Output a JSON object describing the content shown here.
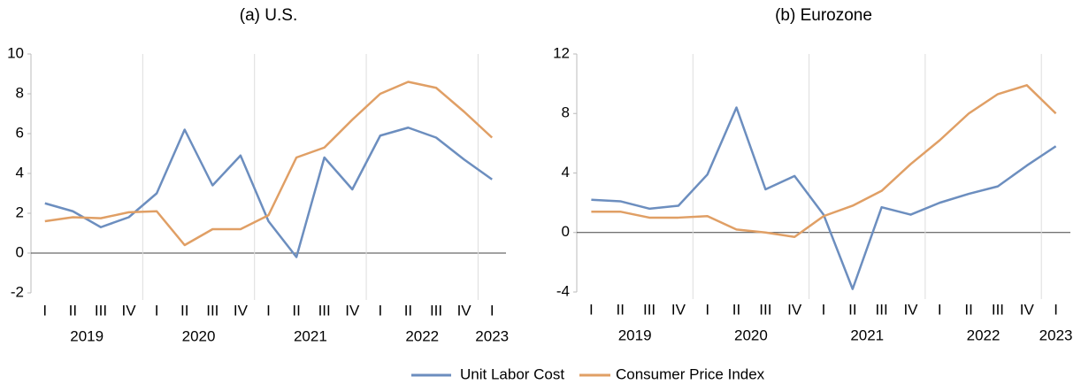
{
  "legend": [
    {
      "name": "Unit Labor Cost",
      "color": "#6c8ebf"
    },
    {
      "name": "Consumer Price Index",
      "color": "#e09f65"
    }
  ],
  "chart_data": [
    {
      "type": "line",
      "title": "(a) U.S.",
      "categories": [
        "I",
        "II",
        "III",
        "IV",
        "I",
        "II",
        "III",
        "IV",
        "I",
        "II",
        "III",
        "IV",
        "I",
        "II",
        "III",
        "IV",
        "I"
      ],
      "years": [
        "2019",
        "2020",
        "2021",
        "2022",
        "2023"
      ],
      "series": [
        {
          "color": "#6c8ebf",
          "values": [
            2.5,
            2.1,
            1.3,
            1.8,
            3.0,
            6.2,
            3.4,
            4.9,
            1.6,
            -0.2,
            4.8,
            3.2,
            5.9,
            6.3,
            5.8,
            4.7,
            3.7
          ]
        },
        {
          "color": "#e09f65",
          "values": [
            1.6,
            1.8,
            1.75,
            2.05,
            2.1,
            0.4,
            1.2,
            1.2,
            1.9,
            4.8,
            5.3,
            6.7,
            8.0,
            8.6,
            8.3,
            7.1,
            5.8
          ]
        }
      ],
      "ylim": [
        -2,
        10
      ],
      "yticks": [
        -2,
        0,
        2,
        4,
        6,
        8,
        10
      ]
    },
    {
      "type": "line",
      "title": "(b) Eurozone",
      "categories": [
        "I",
        "II",
        "III",
        "IV",
        "I",
        "II",
        "III",
        "IV",
        "I",
        "II",
        "III",
        "IV",
        "I",
        "II",
        "III",
        "IV",
        "I"
      ],
      "years": [
        "2019",
        "2020",
        "2021",
        "2022",
        "2023"
      ],
      "series": [
        {
          "color": "#6c8ebf",
          "values": [
            2.2,
            2.1,
            1.6,
            1.8,
            3.9,
            8.4,
            2.9,
            3.8,
            1.2,
            -3.8,
            1.7,
            1.2,
            2.0,
            2.6,
            3.1,
            4.5,
            5.8
          ]
        },
        {
          "color": "#e09f65",
          "values": [
            1.4,
            1.4,
            1.0,
            1.0,
            1.1,
            0.2,
            0.0,
            -0.3,
            1.1,
            1.8,
            2.8,
            4.6,
            6.2,
            8.0,
            9.3,
            9.9,
            8.0
          ]
        }
      ],
      "ylim": [
        -4,
        12
      ],
      "yticks": [
        -4,
        0,
        4,
        8,
        12
      ]
    }
  ]
}
